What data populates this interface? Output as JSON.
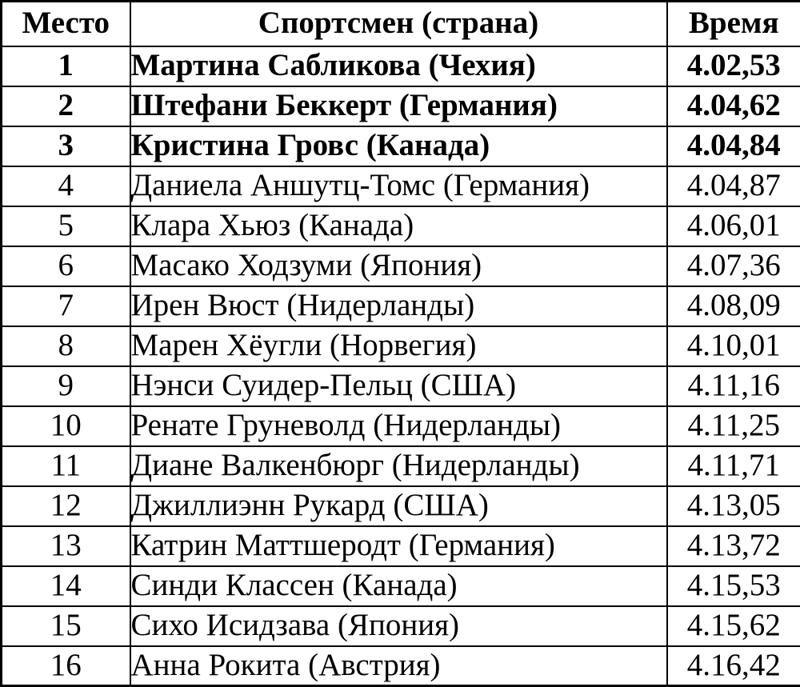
{
  "colors": {
    "text": "#000000",
    "border": "#000000",
    "background": "#ffffff"
  },
  "table": {
    "headers": {
      "place": "Место",
      "athlete": "Спортсмен (страна)",
      "time": "Время"
    },
    "rows": [
      {
        "place": "1",
        "athlete": "Мартина Сабликова (Чехия)",
        "time": "4.02,53",
        "bold": true
      },
      {
        "place": "2",
        "athlete": "Штефани Беккерт (Германия)",
        "time": "4.04,62",
        "bold": true
      },
      {
        "place": "3",
        "athlete": "Кристина Гровс (Канада)",
        "time": "4.04,84",
        "bold": true
      },
      {
        "place": "4",
        "athlete": "Даниела Аншутц-Томс (Германия)",
        "time": "4.04,87",
        "bold": false
      },
      {
        "place": "5",
        "athlete": "Клара Хьюз (Канада)",
        "time": "4.06,01",
        "bold": false
      },
      {
        "place": "6",
        "athlete": "Масако Ходзуми (Япония)",
        "time": "4.07,36",
        "bold": false
      },
      {
        "place": "7",
        "athlete": "Ирен Вюст (Нидерланды)",
        "time": "4.08,09",
        "bold": false
      },
      {
        "place": "8",
        "athlete": "Марен Хёугли (Норвегия)",
        "time": "4.10,01",
        "bold": false
      },
      {
        "place": "9",
        "athlete": "Нэнси Суидер-Пельц (США)",
        "time": "4.11,16",
        "bold": false
      },
      {
        "place": "10",
        "athlete": "Ренате Груневолд (Нидерланды)",
        "time": "4.11,25",
        "bold": false
      },
      {
        "place": "11",
        "athlete": "Диане Валкенбюрг (Нидерланды)",
        "time": "4.11,71",
        "bold": false
      },
      {
        "place": "12",
        "athlete": "Джиллиэнн Рукард (США)",
        "time": "4.13,05",
        "bold": false
      },
      {
        "place": "13",
        "athlete": "Катрин Маттшеродт (Германия)",
        "time": "4.13,72",
        "bold": false
      },
      {
        "place": "14",
        "athlete": "Синди Классен (Канада)",
        "time": "4.15,53",
        "bold": false
      },
      {
        "place": "15",
        "athlete": "Сихо Исидзава (Япония)",
        "time": "4.15,62",
        "bold": false
      },
      {
        "place": "16",
        "athlete": "Анна Рокита (Австрия)",
        "time": "4.16,42",
        "bold": false
      }
    ]
  },
  "chart_data": {
    "type": "table",
    "title": "",
    "columns": [
      "Место",
      "Спортсмен (страна)",
      "Время"
    ],
    "rows": [
      [
        "1",
        "Мартина Сабликова (Чехия)",
        "4.02,53"
      ],
      [
        "2",
        "Штефани Беккерт (Германия)",
        "4.04,62"
      ],
      [
        "3",
        "Кристина Гровс (Канада)",
        "4.04,84"
      ],
      [
        "4",
        "Даниела Аншутц-Томс (Германия)",
        "4.04,87"
      ],
      [
        "5",
        "Клара Хьюз (Канада)",
        "4.06,01"
      ],
      [
        "6",
        "Масако Ходзуми (Япония)",
        "4.07,36"
      ],
      [
        "7",
        "Ирен Вюст (Нидерланды)",
        "4.08,09"
      ],
      [
        "8",
        "Марен Хёугли (Норвегия)",
        "4.10,01"
      ],
      [
        "9",
        "Нэнси Суидер-Пельц (США)",
        "4.11,16"
      ],
      [
        "10",
        "Ренате Груневолд (Нидерланды)",
        "4.11,25"
      ],
      [
        "11",
        "Диане Валкенбюрг (Нидерланды)",
        "4.11,71"
      ],
      [
        "12",
        "Джиллиэнн Рукард (США)",
        "4.13,05"
      ],
      [
        "13",
        "Катрин Маттшеродт (Германия)",
        "4.13,72"
      ],
      [
        "14",
        "Синди Классен (Канада)",
        "4.15,53"
      ],
      [
        "15",
        "Сихо Исидзава (Япония)",
        "4.15,62"
      ],
      [
        "16",
        "Анна Рокита (Австрия)",
        "4.16,42"
      ]
    ]
  }
}
